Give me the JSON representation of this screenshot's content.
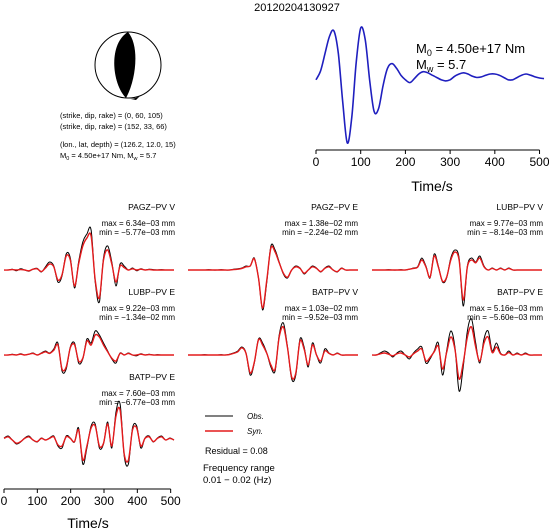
{
  "title": "20120204130927",
  "colors": {
    "observed": "#000000",
    "synthetic": "#e41a1c",
    "stf": "#1f1fbf"
  },
  "source": {
    "plane1": "(strike, dip, rake) = (0, 60, 105)",
    "plane2": "(strike, dip, rake) = (152, 33, 66)",
    "location": "(lon., lat, depth) = (126.2, 12.0, 15)",
    "moment_line": "M",
    "moment_sub0": "0",
    "moment_val": " = 4.50e+17 Nm, M",
    "moment_subw": "w",
    "mw_val": " = 5.7"
  },
  "stf_labels": {
    "m0_prefix": "M",
    "m0_sub": "0",
    "m0_value": " = 4.50e+17 Nm",
    "mw_prefix": "M",
    "mw_sub": "w",
    "mw_value": " = 5.7",
    "xlabel": "Time/s"
  },
  "legend": {
    "obs": "Obs.",
    "syn": "Syn.",
    "residual": "Residual = 0.08",
    "freq_title": "Frequency range",
    "freq_value": "0.01 − 0.02 (Hz)"
  },
  "bottom_axis": {
    "xlabel": "Time/s"
  },
  "chart_data": [
    {
      "type": "line",
      "name": "source-time-function",
      "xlabel": "Time/s",
      "xlim": [
        0,
        510
      ],
      "xticks": [
        0,
        100,
        200,
        300,
        400,
        500
      ],
      "x": [
        0,
        10,
        20,
        30,
        40,
        50,
        60,
        70,
        80,
        90,
        100,
        110,
        120,
        130,
        140,
        150,
        160,
        170,
        180,
        190,
        200,
        210,
        220,
        230,
        240,
        250,
        260,
        270,
        280,
        290,
        300,
        310,
        320,
        330,
        340,
        350,
        360,
        370,
        380,
        390,
        400,
        410,
        420,
        430,
        440,
        450,
        460,
        470,
        480,
        490,
        500,
        510
      ],
      "values": [
        0.1,
        0.25,
        0.55,
        0.85,
        0.95,
        0.55,
        -0.3,
        -1.0,
        -0.55,
        0.4,
        1.0,
        0.8,
        0.1,
        -0.45,
        -0.4,
        0.0,
        0.3,
        0.38,
        0.3,
        0.18,
        0.1,
        0.05,
        0.12,
        0.2,
        0.24,
        0.22,
        0.18,
        0.14,
        0.1,
        0.08,
        0.1,
        0.16,
        0.2,
        0.22,
        0.2,
        0.16,
        0.14,
        0.15,
        0.18,
        0.2,
        0.2,
        0.18,
        0.14,
        0.1,
        0.1,
        0.14,
        0.18,
        0.2,
        0.18,
        0.15,
        0.13,
        0.12
      ]
    },
    {
      "type": "line",
      "name": "waveforms",
      "xlabel": "Time/s",
      "xlim": [
        0,
        510
      ],
      "xticks": [
        0,
        100,
        200,
        300,
        400,
        500
      ],
      "legend": [
        "Obs.",
        "Syn."
      ],
      "panels": [
        {
          "station": "PAGZ−PV V",
          "max": "max = 6.34e−03 mm",
          "min": "min = −5.77e−03 mm",
          "obs": [
            0,
            0,
            0.02,
            -0.02,
            0.03,
            0,
            -0.03,
            0.02,
            0.04,
            -0.05,
            0.08,
            0.2,
            0.1,
            -0.3,
            -0.15,
            0.4,
            0.3,
            -0.45,
            0.2,
            0.7,
            0.9,
            1.0,
            -0.3,
            -0.8,
            0.3,
            0.6,
            0.2,
            -0.4,
            0.15,
            0.1,
            0.0,
            0.05,
            -0.02,
            0.03,
            0.0,
            0.02,
            0.01,
            0.0,
            0.01,
            0,
            0,
            0
          ],
          "syn": [
            0,
            0,
            0.01,
            0.0,
            0.01,
            0.0,
            -0.02,
            0.02,
            0.03,
            -0.04,
            0.05,
            0.15,
            0.08,
            -0.25,
            -0.12,
            0.35,
            0.25,
            -0.4,
            0.15,
            0.6,
            0.8,
            0.85,
            -0.25,
            -0.7,
            0.25,
            0.5,
            0.15,
            -0.3,
            0.1,
            0.06,
            0.0,
            0.03,
            0.0,
            0.02,
            0.0,
            0.01,
            0.0,
            0.0,
            0.0,
            0,
            0,
            0
          ]
        },
        {
          "station": "PAGZ−PV E",
          "max": "max = 1.38e−02 mm",
          "min": "min = −2.24e−02 mm",
          "obs": [
            0,
            0,
            0,
            0,
            0,
            0.01,
            0,
            0,
            0.01,
            0,
            0,
            0.02,
            0.03,
            0.05,
            0.1,
            0.1,
            0.3,
            -0.2,
            -1.0,
            -0.3,
            0.6,
            0.5,
            0.2,
            -0.1,
            -0.2,
            0.0,
            0.1,
            0.05,
            -0.1,
            0.0,
            0.1,
            0.05,
            -0.05,
            0.05,
            0.1,
            0.0,
            -0.05,
            0.05,
            0.0,
            0,
            0,
            0
          ],
          "syn": [
            0,
            0,
            0,
            0,
            0,
            0,
            0,
            0,
            0,
            0,
            0,
            0.01,
            0.02,
            0.04,
            0.08,
            0.1,
            0.28,
            -0.2,
            -0.95,
            -0.25,
            0.55,
            0.45,
            0.18,
            -0.08,
            -0.18,
            0.0,
            0.08,
            0.04,
            -0.08,
            0.0,
            0.08,
            0.04,
            -0.04,
            0.04,
            0.08,
            0.0,
            -0.04,
            0.04,
            0.0,
            0,
            0,
            0
          ]
        },
        {
          "station": "LUBP−PV V",
          "max": "max = 9.77e−03 mm",
          "min": "min = −8.14e−03 mm",
          "obs": [
            0,
            0,
            0,
            0,
            0.01,
            0,
            0,
            0.01,
            0,
            0.02,
            0.05,
            0.08,
            0.3,
            0.1,
            -0.2,
            0.4,
            0.1,
            -0.3,
            -0.2,
            0.3,
            0.5,
            0.3,
            -0.9,
            0.1,
            0.3,
            0.2,
            0.35,
            0.1,
            0.0,
            0.05,
            0.0,
            0.05,
            0.0,
            0.05,
            0.0,
            0.0,
            0.0,
            0,
            0,
            0,
            0,
            0
          ],
          "syn": [
            0,
            0,
            0,
            0,
            0,
            0,
            0,
            0,
            0,
            0.02,
            0.04,
            0.07,
            0.25,
            0.08,
            -0.18,
            0.35,
            0.08,
            -0.28,
            -0.18,
            0.25,
            0.45,
            0.25,
            -0.75,
            0.08,
            0.25,
            0.18,
            0.3,
            0.08,
            0.0,
            0.04,
            0.0,
            0.04,
            0.0,
            0.04,
            0.0,
            0.0,
            0.0,
            0,
            0,
            0,
            0,
            0
          ]
        },
        {
          "station": "LUBP−PV E",
          "max": "max = 9.22e−03 mm",
          "min": "min = −1.34e−02 mm",
          "obs": [
            0,
            0,
            0.02,
            0.0,
            0.03,
            0.0,
            0.02,
            0.05,
            0.0,
            0.05,
            0.1,
            0.05,
            0.15,
            0.3,
            -0.4,
            -0.35,
            0.2,
            0.3,
            -0.2,
            -0.1,
            0.4,
            0.3,
            0.6,
            0.5,
            0.3,
            0.1,
            -0.1,
            -0.2,
            0.05,
            0.0,
            0.05,
            0.0,
            -0.02,
            0.03,
            0.0,
            0.02,
            0.0,
            0.01,
            0,
            0,
            0,
            0
          ],
          "syn": [
            0,
            0,
            0.01,
            0.0,
            0.02,
            0.0,
            0.02,
            0.04,
            0.0,
            0.04,
            0.08,
            0.04,
            0.12,
            0.25,
            -0.35,
            -0.3,
            0.18,
            0.26,
            -0.15,
            -0.08,
            0.35,
            0.25,
            0.5,
            0.45,
            0.25,
            0.08,
            -0.08,
            -0.15,
            0.04,
            0.0,
            0.04,
            0.0,
            0.0,
            0.02,
            0.0,
            0.01,
            0.0,
            0.0,
            0,
            0,
            0,
            0
          ]
        },
        {
          "station": "BATP−PV V",
          "max": "max = 1.03e−02 mm",
          "min": "min = −9.52e−03 mm",
          "obs": [
            0,
            0,
            0,
            0,
            0.01,
            0,
            0,
            0,
            0.01,
            0,
            0.02,
            0.05,
            0.1,
            0.2,
            0.05,
            -0.5,
            -0.2,
            0.4,
            0.3,
            0.05,
            -0.3,
            -0.4,
            0.5,
            0.8,
            0.2,
            -0.6,
            -0.5,
            0.4,
            0.2,
            -0.3,
            0.3,
            0.0,
            -0.2,
            0.15,
            0.05,
            0.0,
            0.05,
            0.0,
            0,
            0,
            0,
            0
          ],
          "syn": [
            0,
            0,
            0,
            0,
            0,
            0,
            0,
            0,
            0,
            0,
            0.01,
            0.04,
            0.08,
            0.18,
            0.04,
            -0.45,
            -0.18,
            0.38,
            0.25,
            0.04,
            -0.25,
            -0.35,
            0.45,
            0.7,
            0.18,
            -0.55,
            -0.45,
            0.35,
            0.15,
            -0.25,
            0.25,
            0.0,
            -0.15,
            0.1,
            0.04,
            0.0,
            0.04,
            0.0,
            0,
            0,
            0,
            0
          ]
        },
        {
          "station": "BATP−PV E",
          "max": "max = 5.16e−03 mm",
          "min": "min = −5.60e−03 mm",
          "obs": [
            0,
            0,
            0.05,
            0.1,
            0.05,
            -0.05,
            0.05,
            0.1,
            0.0,
            -0.1,
            0.05,
            0.15,
            0.2,
            -0.2,
            -0.1,
            0.1,
            0.3,
            -0.5,
            0.1,
            0.6,
            0.2,
            -0.9,
            -0.3,
            0.6,
            0.9,
            0.3,
            -0.2,
            0.4,
            0.6,
            0.1,
            0.3,
            0.05,
            0.0,
            0.1,
            0.0,
            0.05,
            0.0,
            0.05,
            0,
            0,
            0,
            0
          ],
          "syn": [
            0,
            0,
            0.03,
            0.05,
            0.02,
            -0.02,
            0.03,
            0.05,
            0.0,
            -0.05,
            0.03,
            0.1,
            0.15,
            -0.15,
            -0.06,
            0.08,
            0.22,
            -0.35,
            0.06,
            0.45,
            0.15,
            -0.6,
            -0.2,
            0.45,
            0.7,
            0.2,
            -0.15,
            0.3,
            0.45,
            0.06,
            0.2,
            0.03,
            0.0,
            0.06,
            0.0,
            0.03,
            0.0,
            0.03,
            0,
            0,
            0,
            0
          ]
        },
        {
          "station": "BATP−PV E",
          "max": "max = 7.60e−03 mm",
          "min": "min = −6.77e−03 mm",
          "obs": [
            0.05,
            0.1,
            0.0,
            -0.1,
            -0.05,
            0.05,
            0.1,
            0.0,
            -0.05,
            0.05,
            0.0,
            0.05,
            0.1,
            -0.15,
            -0.2,
            0.1,
            0.05,
            -0.05,
            0.3,
            -0.6,
            -0.2,
            0.35,
            0.4,
            -0.2,
            -0.1,
            0.45,
            -0.2,
            0.7,
            0.9,
            -0.4,
            -0.6,
            0.3,
            0.35,
            -0.2,
            0.05,
            0.1,
            -0.05,
            0.05,
            0.1,
            0,
            0.05,
            0
          ],
          "syn": [
            0.04,
            0.08,
            0.0,
            -0.08,
            -0.04,
            0.04,
            0.08,
            0.0,
            -0.04,
            0.04,
            0.0,
            0.04,
            0.08,
            -0.12,
            -0.15,
            0.08,
            0.04,
            -0.04,
            0.25,
            -0.5,
            -0.15,
            0.3,
            0.35,
            -0.15,
            -0.08,
            0.4,
            -0.15,
            0.6,
            0.75,
            -0.35,
            -0.5,
            0.25,
            0.3,
            -0.15,
            0.04,
            0.08,
            -0.04,
            0.04,
            0.08,
            0,
            0.04,
            0
          ]
        }
      ]
    }
  ]
}
